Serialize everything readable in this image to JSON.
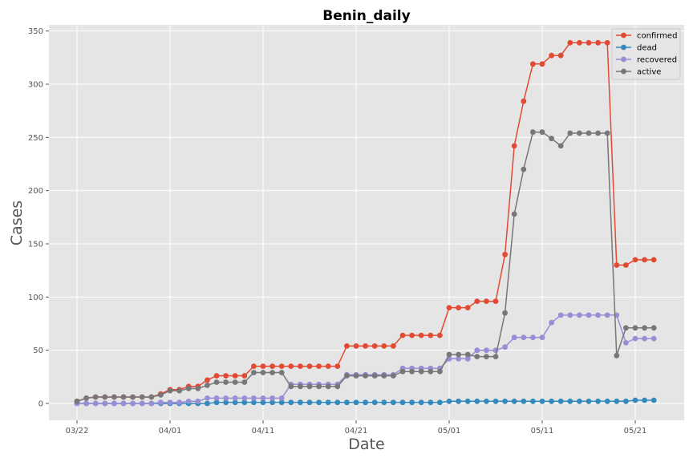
{
  "chart_data": {
    "type": "line",
    "title": "Benin_daily",
    "xlabel": "Date",
    "ylabel": "Cases",
    "x_start": "2020-03-22",
    "x_end": "2020-05-24",
    "x_ticks": [
      "03/22",
      "04/01",
      "04/11",
      "04/21",
      "05/01",
      "05/11",
      "05/21"
    ],
    "y_ticks": [
      0,
      50,
      100,
      150,
      200,
      250,
      300,
      350
    ],
    "ylim": [
      -16,
      356
    ],
    "grid": true,
    "legend_position": "top-right",
    "series": [
      {
        "name": "confirmed",
        "color": "#E24A33",
        "values": [
          2,
          5,
          6,
          6,
          6,
          6,
          6,
          6,
          6,
          9,
          13,
          13,
          16,
          16,
          22,
          26,
          26,
          26,
          26,
          35,
          35,
          35,
          35,
          35,
          35,
          35,
          35,
          35,
          35,
          54,
          54,
          54,
          54,
          54,
          54,
          64,
          64,
          64,
          64,
          64,
          90,
          90,
          90,
          96,
          96,
          96,
          140,
          242,
          284,
          319,
          319,
          327,
          327,
          339,
          339,
          339,
          339,
          339,
          130,
          130,
          135,
          135,
          135
        ]
      },
      {
        "name": "dead",
        "color": "#348ABD",
        "values": [
          0,
          0,
          0,
          0,
          0,
          0,
          0,
          0,
          0,
          0,
          0,
          0,
          0,
          0,
          0,
          1,
          1,
          1,
          1,
          1,
          1,
          1,
          1,
          1,
          1,
          1,
          1,
          1,
          1,
          1,
          1,
          1,
          1,
          1,
          1,
          1,
          1,
          1,
          1,
          1,
          2,
          2,
          2,
          2,
          2,
          2,
          2,
          2,
          2,
          2,
          2,
          2,
          2,
          2,
          2,
          2,
          2,
          2,
          2,
          2,
          3,
          3,
          3
        ]
      },
      {
        "name": "recovered",
        "color": "#988ED5",
        "values": [
          0,
          0,
          0,
          0,
          0,
          0,
          0,
          0,
          0,
          1,
          1,
          1,
          2,
          2,
          5,
          5,
          5,
          5,
          5,
          5,
          5,
          5,
          5,
          18,
          18,
          18,
          18,
          18,
          18,
          27,
          27,
          27,
          27,
          27,
          27,
          33,
          33,
          33,
          33,
          33,
          42,
          42,
          42,
          50,
          50,
          50,
          53,
          62,
          62,
          62,
          62,
          76,
          83,
          83,
          83,
          83,
          83,
          83,
          83,
          57,
          61,
          61,
          61
        ]
      },
      {
        "name": "active",
        "color": "#777777",
        "values": [
          2,
          5,
          6,
          6,
          6,
          6,
          6,
          6,
          6,
          8,
          12,
          12,
          14,
          14,
          17,
          20,
          20,
          20,
          20,
          29,
          29,
          29,
          29,
          16,
          16,
          16,
          16,
          16,
          16,
          26,
          26,
          26,
          26,
          26,
          26,
          30,
          30,
          30,
          30,
          30,
          46,
          46,
          46,
          44,
          44,
          44,
          85,
          178,
          220,
          255,
          255,
          249,
          242,
          254,
          254,
          254,
          254,
          254,
          45,
          71,
          71,
          71,
          71
        ]
      }
    ]
  }
}
